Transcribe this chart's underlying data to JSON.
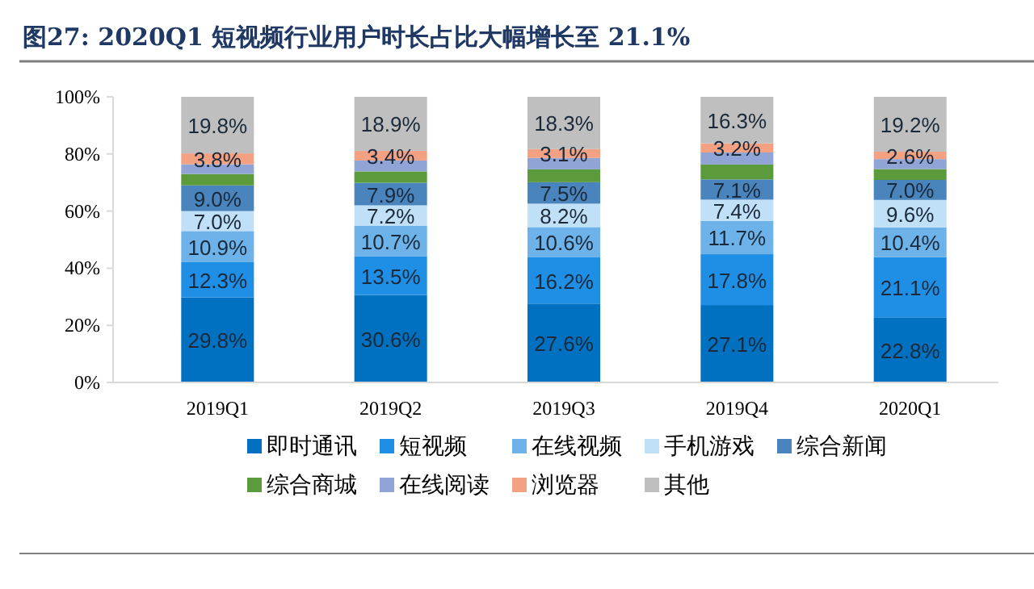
{
  "chart_data": {
    "type": "bar",
    "stacked": true,
    "title": "图27:   2020Q1 短视频行业用户时长占比大幅增长至 21.1%",
    "categories": [
      "2019Q1",
      "2019Q2",
      "2019Q3",
      "2019Q4",
      "2020Q1"
    ],
    "ylim": [
      0,
      100
    ],
    "yticks": [
      {
        "value": 0,
        "label": "0%"
      },
      {
        "value": 20,
        "label": "20%"
      },
      {
        "value": 40,
        "label": "40%"
      },
      {
        "value": 60,
        "label": "60%"
      },
      {
        "value": 80,
        "label": "80%"
      },
      {
        "value": 100,
        "label": "100%"
      }
    ],
    "grid": false,
    "legend": "bottom",
    "series": [
      {
        "name": "即时通讯",
        "color": "#0070c0",
        "values": [
          29.8,
          30.6,
          27.6,
          27.1,
          22.8
        ],
        "value_labels": [
          "29.8%",
          "30.6%",
          "27.6%",
          "27.1%",
          "22.8%"
        ]
      },
      {
        "name": "短视频",
        "color": "#1f8fe5",
        "values": [
          12.3,
          13.5,
          16.2,
          17.8,
          21.1
        ],
        "value_labels": [
          "12.3%",
          "13.5%",
          "16.2%",
          "17.8%",
          "21.1%"
        ]
      },
      {
        "name": "在线视频",
        "color": "#6db3ea",
        "values": [
          10.9,
          10.7,
          10.6,
          11.7,
          10.4
        ],
        "value_labels": [
          "10.9%",
          "10.7%",
          "10.6%",
          "11.7%",
          "10.4%"
        ]
      },
      {
        "name": "手机游戏",
        "color": "#c0e0f7",
        "values": [
          7.0,
          7.2,
          8.2,
          7.4,
          9.6
        ],
        "value_labels": [
          "7.0%",
          "7.2%",
          "8.2%",
          "7.4%",
          "9.6%"
        ]
      },
      {
        "name": "综合新闻",
        "color": "#4a84bd",
        "values": [
          9.0,
          7.9,
          7.5,
          7.1,
          7.0
        ],
        "value_labels": [
          "9.0%",
          "7.9%",
          "7.5%",
          "7.1%",
          "7.0%"
        ]
      },
      {
        "name": "综合商城",
        "color": "#5b9b3b",
        "values": [
          4.0,
          4.0,
          4.5,
          5.2,
          3.8
        ]
      },
      {
        "name": "在线阅读",
        "color": "#90a5d6",
        "values": [
          3.4,
          3.8,
          4.0,
          4.2,
          3.5
        ]
      },
      {
        "name": "浏览器",
        "color": "#f3a183",
        "values": [
          3.8,
          3.4,
          3.1,
          3.2,
          2.6
        ],
        "value_labels": [
          "3.8%",
          "3.4%",
          "3.1%",
          "3.2%",
          "2.6%"
        ]
      },
      {
        "name": "其他",
        "color": "#bfbfbf",
        "values": [
          19.8,
          18.9,
          18.3,
          16.3,
          19.2
        ],
        "value_labels": [
          "19.8%",
          "18.9%",
          "18.3%",
          "16.3%",
          "19.2%"
        ]
      }
    ]
  }
}
